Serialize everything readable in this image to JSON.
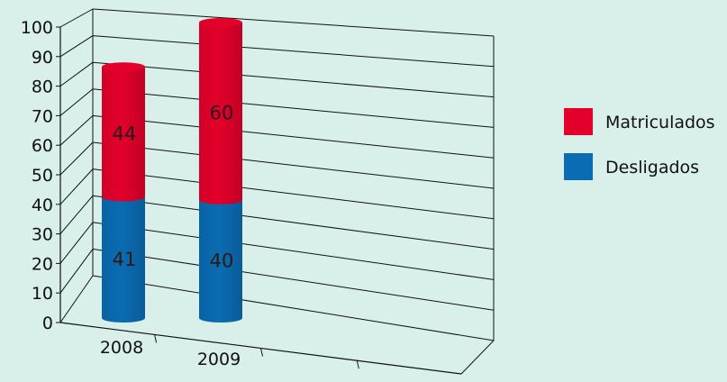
{
  "chart_data": {
    "type": "bar",
    "stacked": true,
    "style": "3d-cylinder",
    "title": "",
    "xlabel": "",
    "ylabel": "",
    "ylim": [
      0,
      100
    ],
    "yticks": [
      "0",
      "10",
      "20",
      "30",
      "40",
      "50",
      "60",
      "70",
      "80",
      "90",
      "100"
    ],
    "categories": [
      "2008",
      "2009"
    ],
    "series": [
      {
        "name": "Desligados",
        "values": [
          41,
          40
        ],
        "color": "#0a6cb2"
      },
      {
        "name": "Matriculados",
        "values": [
          44,
          60
        ],
        "color": "#e3002b"
      }
    ],
    "legend_position": "right",
    "grid": true,
    "background": "#d9efea"
  }
}
